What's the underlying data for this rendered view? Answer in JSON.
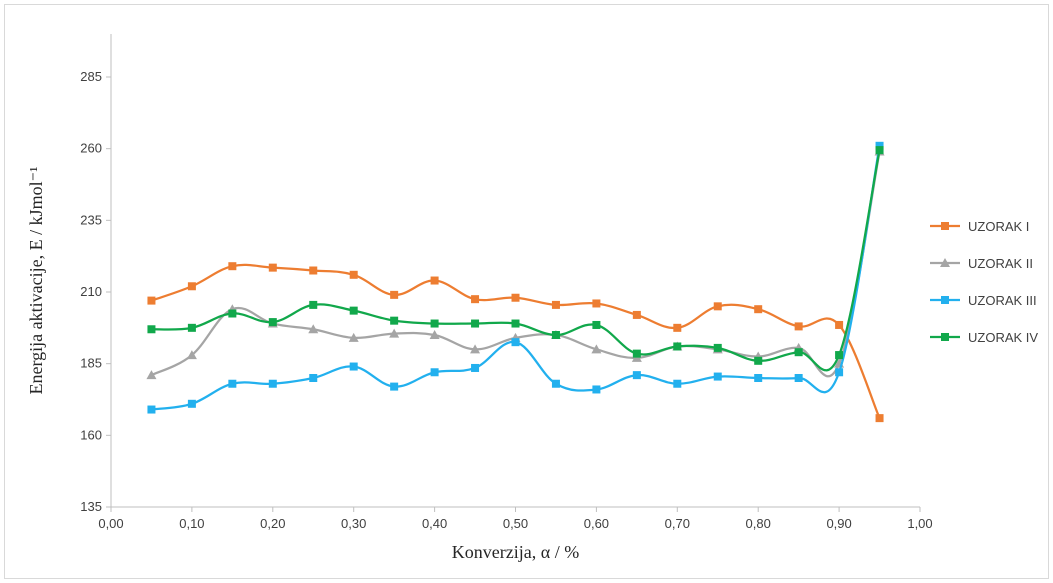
{
  "chart_data": {
    "type": "line",
    "title": "",
    "xlabel": "Konverzija, α / %",
    "ylabel": "Energija aktivacije, E / kJmol⁻¹",
    "xlim": [
      0,
      1
    ],
    "ylim": [
      135,
      300
    ],
    "x_ticks": [
      "0,00",
      "0,10",
      "0,20",
      "0,30",
      "0,40",
      "0,50",
      "0,60",
      "0,70",
      "0,80",
      "0,90",
      "1,00"
    ],
    "y_ticks": [
      "135",
      "160",
      "185",
      "210",
      "235",
      "260",
      "285"
    ],
    "grid": false,
    "legend_position": "right",
    "x": [
      0.05,
      0.1,
      0.15,
      0.2,
      0.25,
      0.3,
      0.35,
      0.4,
      0.45,
      0.5,
      0.55,
      0.6,
      0.65,
      0.7,
      0.75,
      0.8,
      0.85,
      0.9,
      0.95
    ],
    "series": [
      {
        "name": "UZORAK I",
        "color": "#ED7D31",
        "marker": "square",
        "values": [
          207,
          212,
          219,
          218.5,
          217.5,
          216,
          209,
          214,
          207.5,
          208,
          205.5,
          206,
          202,
          197.5,
          205,
          204,
          198,
          198.5,
          166
        ]
      },
      {
        "name": "UZORAK II",
        "color": "#A5A5A5",
        "marker": "triangle",
        "values": [
          181,
          188,
          204,
          199,
          197,
          194,
          195.5,
          195,
          190,
          194,
          195,
          190,
          187,
          191,
          190,
          187.5,
          190.5,
          185,
          259
        ]
      },
      {
        "name": "UZORAK III",
        "color": "#22B0EE",
        "marker": "square",
        "values": [
          169,
          171,
          178,
          178,
          180,
          184,
          177,
          182,
          183.5,
          192.5,
          178,
          176,
          181,
          178,
          180.5,
          180,
          180,
          182,
          261
        ]
      },
      {
        "name": "UZORAK IV",
        "color": "#11A84B",
        "marker": "square",
        "values": [
          197,
          197.5,
          202.5,
          199.5,
          205.5,
          203.5,
          200,
          199,
          199,
          199,
          195,
          198.5,
          188.5,
          191,
          190.5,
          186,
          189,
          188,
          259.5
        ]
      }
    ]
  }
}
